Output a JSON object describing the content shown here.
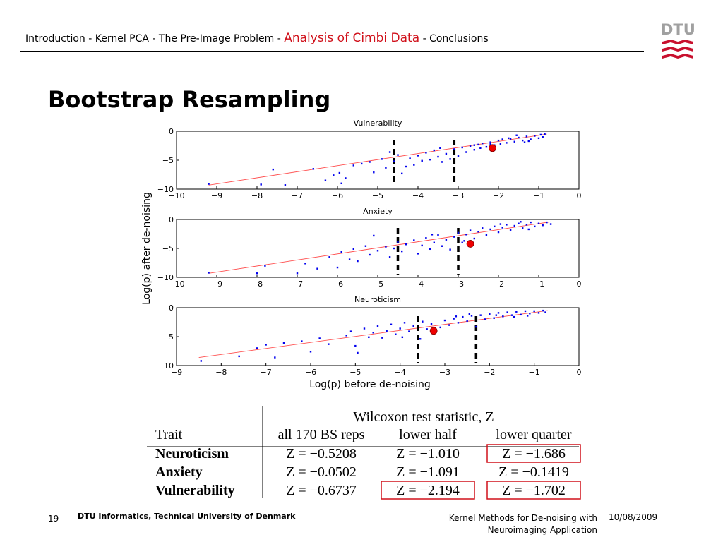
{
  "header": {
    "nav": [
      {
        "label": "Introduction",
        "active": false
      },
      {
        "label": "Kernel PCA",
        "active": false
      },
      {
        "label": "The Pre-Image Problem",
        "active": false
      },
      {
        "label": "Analysis of Cimbi Data",
        "active": true
      },
      {
        "label": "Conclusions",
        "active": false
      }
    ],
    "separator": " - ",
    "logo_text": "DTU"
  },
  "slide_title": "Bootstrap Resampling",
  "chart_data": [
    {
      "type": "scatter",
      "title": "Vulnerability",
      "xlabel": "Log(p) before de-noising",
      "ylabel": "Log(p) after de-noising",
      "xlim": [
        -10,
        0
      ],
      "ylim": [
        -10,
        0
      ],
      "xticks": [
        -10,
        -9,
        -8,
        -7,
        -6,
        -5,
        -4,
        -3,
        -2,
        -1,
        0
      ],
      "yticks": [
        0,
        -5,
        -10
      ],
      "fit_line": [
        [
          -9.2,
          -9.3
        ],
        [
          -0.8,
          -0.5
        ]
      ],
      "vlines": [
        -4.6,
        -3.1
      ],
      "highlight": [
        -2.15,
        -2.9
      ],
      "points": [
        [
          -9.2,
          -9.1
        ],
        [
          -7.9,
          -9.2
        ],
        [
          -7.6,
          -6.6
        ],
        [
          -7.3,
          -9.3
        ],
        [
          -6.6,
          -6.5
        ],
        [
          -6.3,
          -8.5
        ],
        [
          -6.1,
          -7.6
        ],
        [
          -5.95,
          -7.2
        ],
        [
          -5.9,
          -9.0
        ],
        [
          -5.8,
          -8.1
        ],
        [
          -5.6,
          -5.9
        ],
        [
          -5.4,
          -5.6
        ],
        [
          -5.2,
          -5.3
        ],
        [
          -5.1,
          -7.1
        ],
        [
          -4.9,
          -4.8
        ],
        [
          -4.8,
          -6.3
        ],
        [
          -4.7,
          -3.6
        ],
        [
          -4.6,
          -5.2
        ],
        [
          -4.5,
          -4.1
        ],
        [
          -4.4,
          -7.3
        ],
        [
          -4.3,
          -6.1
        ],
        [
          -4.2,
          -4.7
        ],
        [
          -4.1,
          -5.8
        ],
        [
          -4.0,
          -4.2
        ],
        [
          -3.9,
          -5.1
        ],
        [
          -3.8,
          -3.7
        ],
        [
          -3.7,
          -4.9
        ],
        [
          -3.6,
          -3.3
        ],
        [
          -3.5,
          -4.4
        ],
        [
          -3.4,
          -5.3
        ],
        [
          -3.3,
          -3.9
        ],
        [
          -3.2,
          -4.8
        ],
        [
          -3.1,
          -3.1
        ],
        [
          -3.0,
          -4.3
        ],
        [
          -2.9,
          -2.8
        ],
        [
          -2.8,
          -3.6
        ],
        [
          -2.7,
          -2.6
        ],
        [
          -2.6,
          -3.2
        ],
        [
          -2.5,
          -2.3
        ],
        [
          -2.45,
          -2.9
        ],
        [
          -2.4,
          -2.1
        ],
        [
          -2.3,
          -2.7
        ],
        [
          -2.2,
          -1.9
        ],
        [
          -2.1,
          -2.4
        ],
        [
          -2.0,
          -1.6
        ],
        [
          -1.95,
          -2.2
        ],
        [
          -1.9,
          -1.4
        ],
        [
          -1.8,
          -2.0
        ],
        [
          -1.7,
          -1.3
        ],
        [
          -1.6,
          -1.8
        ],
        [
          -1.5,
          -1.1
        ],
        [
          -1.4,
          -1.6
        ],
        [
          -1.3,
          -0.9
        ],
        [
          -1.2,
          -1.4
        ],
        [
          -1.1,
          -0.8
        ],
        [
          -1.0,
          -1.2
        ],
        [
          -0.95,
          -0.6
        ],
        [
          -0.9,
          -1.0
        ],
        [
          -0.85,
          -0.5
        ],
        [
          -1.35,
          -1.9
        ],
        [
          -1.75,
          -1.2
        ],
        [
          -2.6,
          -2.4
        ],
        [
          -3.45,
          -2.9
        ],
        [
          -2.2,
          -2.2
        ],
        [
          -1.55,
          -0.7
        ],
        [
          -1.25,
          -1.7
        ]
      ]
    },
    {
      "type": "scatter",
      "title": "Anxiety",
      "xlim": [
        -10,
        0
      ],
      "ylim": [
        -10,
        0
      ],
      "xticks": [
        -10,
        -9,
        -8,
        -7,
        -6,
        -5,
        -4,
        -3,
        -2,
        -1,
        0
      ],
      "yticks": [
        0,
        -5,
        -10
      ],
      "fit_line": [
        [
          -9.2,
          -9.3
        ],
        [
          -0.7,
          -0.4
        ]
      ],
      "vlines": [
        -4.5,
        -3.0
      ],
      "highlight": [
        -2.7,
        -4.2
      ],
      "points": [
        [
          -9.2,
          -9.2
        ],
        [
          -8.0,
          -9.3
        ],
        [
          -7.8,
          -8.0
        ],
        [
          -7.0,
          -9.3
        ],
        [
          -6.8,
          -7.6
        ],
        [
          -6.5,
          -8.5
        ],
        [
          -6.2,
          -6.5
        ],
        [
          -6.0,
          -8.3
        ],
        [
          -5.9,
          -5.6
        ],
        [
          -5.7,
          -6.9
        ],
        [
          -5.6,
          -5.1
        ],
        [
          -5.5,
          -7.2
        ],
        [
          -5.3,
          -4.6
        ],
        [
          -5.2,
          -6.1
        ],
        [
          -5.1,
          -2.8
        ],
        [
          -5.0,
          -5.4
        ],
        [
          -4.8,
          -4.7
        ],
        [
          -4.7,
          -6.5
        ],
        [
          -4.6,
          -5.0
        ],
        [
          -4.5,
          -3.9
        ],
        [
          -4.4,
          -5.5
        ],
        [
          -4.3,
          -4.3
        ],
        [
          -4.1,
          -3.6
        ],
        [
          -4.0,
          -5.9
        ],
        [
          -3.9,
          -4.5
        ],
        [
          -3.8,
          -3.2
        ],
        [
          -3.7,
          -5.1
        ],
        [
          -3.6,
          -4.0
        ],
        [
          -3.5,
          -2.7
        ],
        [
          -3.4,
          -4.6
        ],
        [
          -3.3,
          -3.5
        ],
        [
          -3.2,
          -5.2
        ],
        [
          -3.1,
          -3.0
        ],
        [
          -3.0,
          -2.3
        ],
        [
          -2.9,
          -4.0
        ],
        [
          -2.8,
          -2.6
        ],
        [
          -2.7,
          -1.9
        ],
        [
          -2.6,
          -3.3
        ],
        [
          -2.5,
          -2.1
        ],
        [
          -2.4,
          -1.5
        ],
        [
          -2.3,
          -2.7
        ],
        [
          -2.2,
          -1.7
        ],
        [
          -2.1,
          -1.2
        ],
        [
          -2.0,
          -2.2
        ],
        [
          -1.9,
          -1.4
        ],
        [
          -1.8,
          -0.9
        ],
        [
          -1.7,
          -1.8
        ],
        [
          -1.6,
          -1.1
        ],
        [
          -1.5,
          -0.7
        ],
        [
          -1.4,
          -1.5
        ],
        [
          -1.3,
          -0.9
        ],
        [
          -1.2,
          -0.5
        ],
        [
          -1.1,
          -1.2
        ],
        [
          -1.0,
          -0.7
        ],
        [
          -0.9,
          -1.0
        ],
        [
          -0.8,
          -0.5
        ],
        [
          -0.7,
          -0.8
        ],
        [
          -1.45,
          -0.4
        ],
        [
          -1.95,
          -0.8
        ],
        [
          -2.85,
          -3.7
        ],
        [
          -3.65,
          -2.6
        ],
        [
          -1.25,
          -1.7
        ]
      ]
    },
    {
      "type": "scatter",
      "title": "Neuroticism",
      "xlim": [
        -9,
        0
      ],
      "ylim": [
        -10,
        0
      ],
      "xticks": [
        -9,
        -8,
        -7,
        -6,
        -5,
        -4,
        -3,
        -2,
        -1,
        0
      ],
      "yticks": [
        0,
        -5,
        -10
      ],
      "fit_line": [
        [
          -8.5,
          -8.6
        ],
        [
          -0.7,
          -0.5
        ]
      ],
      "vlines": [
        -3.6,
        -2.3
      ],
      "highlight": [
        -3.25,
        -4.0
      ],
      "points": [
        [
          -8.45,
          -9.2
        ],
        [
          -7.6,
          -8.4
        ],
        [
          -7.2,
          -7.0
        ],
        [
          -7.0,
          -6.4
        ],
        [
          -6.8,
          -8.6
        ],
        [
          -6.6,
          -6.1
        ],
        [
          -6.2,
          -5.8
        ],
        [
          -6.0,
          -7.6
        ],
        [
          -5.8,
          -5.3
        ],
        [
          -5.6,
          -6.3
        ],
        [
          -5.2,
          -4.8
        ],
        [
          -5.1,
          -4.1
        ],
        [
          -5.0,
          -6.6
        ],
        [
          -4.95,
          -7.8
        ],
        [
          -4.8,
          -3.6
        ],
        [
          -4.7,
          -5.1
        ],
        [
          -4.6,
          -4.3
        ],
        [
          -4.5,
          -3.2
        ],
        [
          -4.4,
          -5.2
        ],
        [
          -4.3,
          -4.0
        ],
        [
          -4.2,
          -2.9
        ],
        [
          -4.1,
          -4.6
        ],
        [
          -4.0,
          -3.6
        ],
        [
          -3.95,
          -5.1
        ],
        [
          -3.9,
          -2.6
        ],
        [
          -3.8,
          -4.1
        ],
        [
          -3.7,
          -3.2
        ],
        [
          -3.55,
          -5.4
        ],
        [
          -3.5,
          -2.4
        ],
        [
          -3.4,
          -3.7
        ],
        [
          -3.3,
          -2.8
        ],
        [
          -3.1,
          -3.4
        ],
        [
          -3.0,
          -2.2
        ],
        [
          -2.9,
          -3.0
        ],
        [
          -2.8,
          -1.9
        ],
        [
          -2.7,
          -2.6
        ],
        [
          -2.6,
          -1.6
        ],
        [
          -2.5,
          -2.3
        ],
        [
          -2.4,
          -1.4
        ],
        [
          -2.3,
          -3.3
        ],
        [
          -2.2,
          -1.3
        ],
        [
          -2.1,
          -2.0
        ],
        [
          -2.0,
          -1.1
        ],
        [
          -1.9,
          -1.8
        ],
        [
          -1.8,
          -0.9
        ],
        [
          -1.7,
          -1.5
        ],
        [
          -1.6,
          -0.8
        ],
        [
          -1.5,
          -1.3
        ],
        [
          -1.4,
          -0.7
        ],
        [
          -1.3,
          -1.2
        ],
        [
          -1.2,
          -0.6
        ],
        [
          -1.1,
          -1.0
        ],
        [
          -1.0,
          -0.6
        ],
        [
          -0.9,
          -0.9
        ],
        [
          -0.8,
          -0.5
        ],
        [
          -0.75,
          -0.8
        ],
        [
          -1.85,
          -1.3
        ],
        [
          -2.45,
          -1.1
        ],
        [
          -1.45,
          -1.6
        ],
        [
          -1.15,
          -1.4
        ],
        [
          -2.75,
          -1.5
        ]
      ]
    }
  ],
  "table": {
    "group_header": "Wilcoxon test statistic, Z",
    "columns": [
      "Trait",
      "all 170 BS reps",
      "lower half",
      "lower quarter"
    ],
    "rows": [
      {
        "trait": "Neuroticism",
        "cells": [
          "Z = −0.5208",
          "Z = −1.010",
          "Z = −1.686"
        ],
        "boxed": [
          false,
          false,
          true
        ]
      },
      {
        "trait": "Anxiety",
        "cells": [
          "Z = −0.0502",
          "Z = −1.091",
          "Z = −0.1419"
        ],
        "boxed": [
          false,
          false,
          false
        ]
      },
      {
        "trait": "Vulnerability",
        "cells": [
          "Z = −0.6737",
          "Z = −2.194",
          "Z = −1.702"
        ],
        "boxed": [
          false,
          true,
          true
        ]
      }
    ],
    "box_color": "#d0101a"
  },
  "footer": {
    "page": "19",
    "institution": "DTU Informatics, Technical University of Denmark",
    "talk_line1": "Kernel Methods for De-noising with",
    "talk_line2": "Neuroimaging Application",
    "date": "10/08/2009"
  }
}
